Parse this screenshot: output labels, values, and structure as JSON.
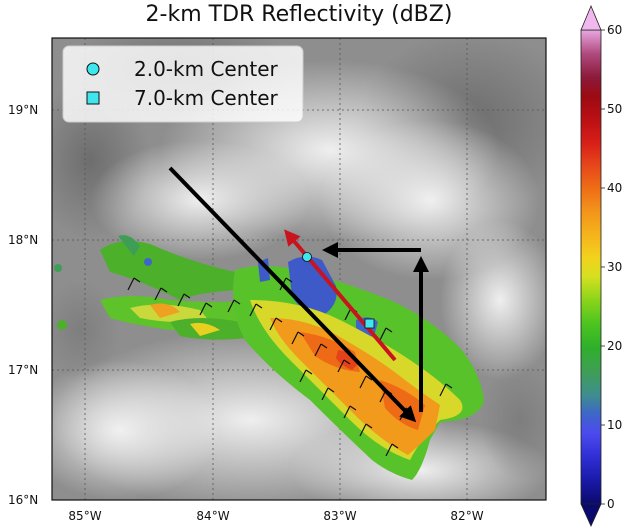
{
  "title": "2-km TDR Reflectivity (dBZ)",
  "legend": [
    {
      "label": "2.0-km Center",
      "marker": "circle",
      "color": "#3ee6ee"
    },
    {
      "label": "7.0-km Center",
      "marker": "square",
      "color": "#3ee6ee"
    }
  ],
  "lat_ticks": [
    "19°N",
    "18°N",
    "17°N",
    "16°N"
  ],
  "lon_ticks": [
    "85°W",
    "84°W",
    "83°W",
    "82°W"
  ],
  "colorbar_ticks": [
    "60",
    "50",
    "40",
    "30",
    "20",
    "10",
    "0"
  ],
  "colorbar_colors": [
    "#0a0a6e",
    "#1a1aa8",
    "#2f2fd6",
    "#4b4bee",
    "#3e66c8",
    "#3f8e8e",
    "#3f9e55",
    "#2fb02a",
    "#4cc41f",
    "#8ad41a",
    "#d6e021",
    "#f2d21c",
    "#f5b21c",
    "#f3921a",
    "#ee6a16",
    "#e5421a",
    "#d82018",
    "#bb1014",
    "#9b0a12",
    "#8c1a3a",
    "#b04a7e",
    "#d886c8",
    "#f0b8ec"
  ],
  "arrow_colors": {
    "motion": "#000000",
    "shear": "#c8141e"
  }
}
